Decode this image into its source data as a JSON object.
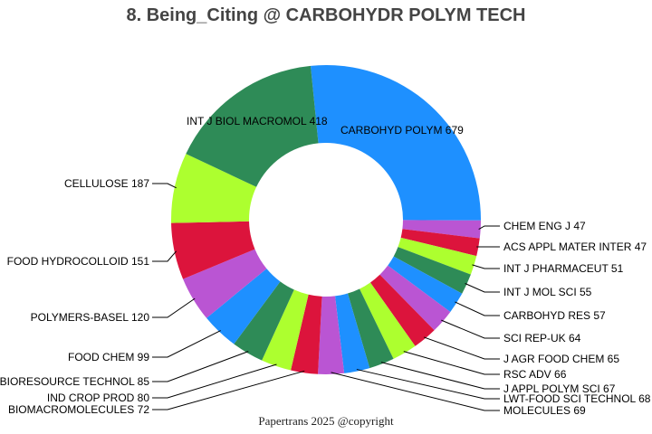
{
  "chart_data": {
    "type": "pie",
    "donut": true,
    "title": "8. Being_Citing @ CARBOHYDR POLYM TECH",
    "footer": "Papertrans 2025 @copyright",
    "palette": [
      "#1E90FF",
      "#BA55D3",
      "#DC143C",
      "#ADFF2F",
      "#2E8B57"
    ],
    "slices": [
      {
        "label": "CARBOHYD POLYM",
        "value": 679
      },
      {
        "label": "CHEM ENG J",
        "value": 47
      },
      {
        "label": "ACS APPL MATER INTER",
        "value": 47
      },
      {
        "label": "INT J PHARMACEUT",
        "value": 51
      },
      {
        "label": "INT J MOL SCI",
        "value": 55
      },
      {
        "label": "CARBOHYD RES",
        "value": 57
      },
      {
        "label": "SCI REP-UK",
        "value": 64
      },
      {
        "label": "J AGR FOOD CHEM",
        "value": 65
      },
      {
        "label": "RSC ADV",
        "value": 66
      },
      {
        "label": "J APPL POLYM SCI",
        "value": 67
      },
      {
        "label": "LWT-FOOD SCI TECHNOL",
        "value": 68
      },
      {
        "label": "MOLECULES",
        "value": 69
      },
      {
        "label": "BIOMACROMOLECULES",
        "value": 72
      },
      {
        "label": "IND CROP PROD",
        "value": 80
      },
      {
        "label": "BIORESOURCE TECHNOL",
        "value": 85
      },
      {
        "label": "FOOD CHEM",
        "value": 99
      },
      {
        "label": "POLYMERS-BASEL",
        "value": 120
      },
      {
        "label": "FOOD HYDROCOLLOID",
        "value": 151
      },
      {
        "label": "CELLULOSE",
        "value": 187
      },
      {
        "label": "INT J BIOL MACROMOL",
        "value": 418
      }
    ]
  }
}
